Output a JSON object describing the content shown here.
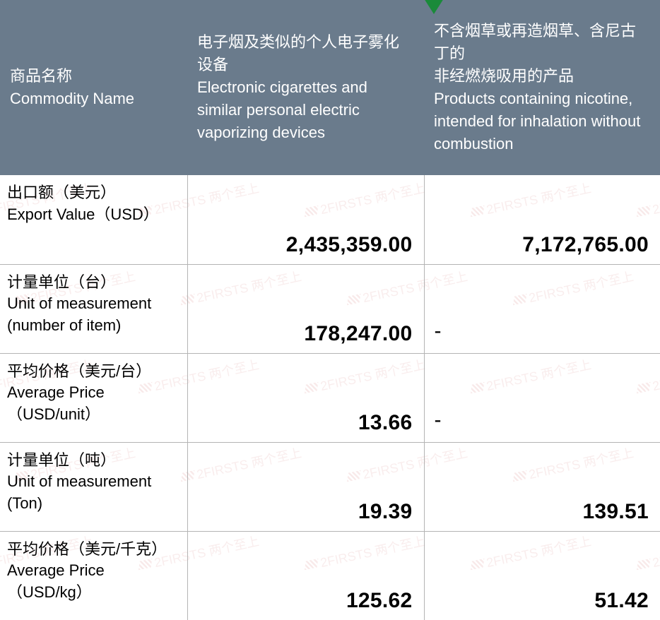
{
  "header": {
    "col0_zh": "商品名称",
    "col0_en": "Commodity Name",
    "col1_zh": "电子烟及类似的个人电子雾化设备",
    "col1_en1": "Electronic cigarettes and",
    "col1_en2": "similar personal electric",
    "col1_en3": "vaporizing devices",
    "col2_zh1": "不含烟草或再造烟草、含尼古丁的",
    "col2_zh2": "非经燃烧吸用的产品",
    "col2_en1": "Products containing nicotine,",
    "col2_en2": "intended for inhalation without",
    "col2_en3": "combustion"
  },
  "rows": [
    {
      "label_zh": "出口额（美元）",
      "label_en": " Export Value（USD）",
      "v1": "2,435,359.00",
      "v2": "7,172,765.00",
      "v2_is_dash": false
    },
    {
      "label_zh": "计量单位（台）",
      "label_en1": "Unit of measurement",
      "label_en2": "(number of item)",
      "v1": "178,247.00",
      "v2": "-",
      "v2_is_dash": true
    },
    {
      "label_zh": "平均价格（美元/台）",
      "label_en1": "Average Price",
      "label_en2": "（USD/unit）",
      "v1": "13.66",
      "v2": "-",
      "v2_is_dash": true
    },
    {
      "label_zh": "计量单位（吨）",
      "label_en1": "Unit of measurement",
      "label_en2": "(Ton)",
      "v1": "19.39",
      "v2": "139.51",
      "v2_is_dash": false
    },
    {
      "label_zh": "平均价格（美元/千克）",
      "label_en1": "Average Price",
      "label_en2": "（USD/kg）",
      "v1": "125.62",
      "v2": "51.42",
      "v2_is_dash": false
    }
  ],
  "watermark": {
    "text": "2FIRSTS 两个至上",
    "color": "rgba(200,80,80,0.10)"
  },
  "style": {
    "header_bg": "#6a7b8c",
    "header_fg": "#ffffff",
    "border_color": "#b4b4b4",
    "value_fontsize": 30,
    "label_fontsize": 22,
    "triangle_color": "#1a8a3a"
  }
}
